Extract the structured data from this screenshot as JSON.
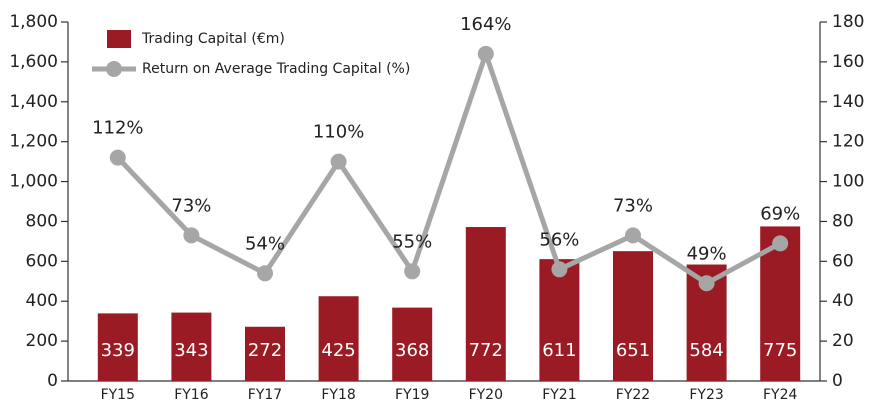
{
  "chart_data": {
    "type": "bar_line",
    "categories": [
      "FY15",
      "FY16",
      "FY17",
      "FY18",
      "FY19",
      "FY20",
      "FY21",
      "FY22",
      "FY23",
      "FY24"
    ],
    "series": [
      {
        "name": "Trading Capital (€m)",
        "type": "bar",
        "color": "#9b1b24",
        "values": [
          339,
          343,
          272,
          425,
          368,
          772,
          611,
          651,
          584,
          775
        ]
      },
      {
        "name": "Return on Average Trading Capital (%)",
        "type": "line",
        "axis": "y2",
        "color": "#a6a6a6",
        "values": [
          112,
          73,
          54,
          110,
          55,
          164,
          56,
          73,
          49,
          69
        ],
        "value_labels": [
          "112%",
          "73%",
          "54%",
          "110%",
          "55%",
          "164%",
          "56%",
          "73%",
          "49%",
          "69%"
        ]
      }
    ],
    "ylim": [
      0,
      1800
    ],
    "yticks": [
      0,
      200,
      400,
      600,
      800,
      {
        "value": 1000,
        "label": "1,000"
      },
      {
        "value": 1200,
        "label": "1,200"
      },
      {
        "value": 1400,
        "label": "1,400"
      },
      {
        "value": 1600,
        "label": "1,600"
      },
      {
        "value": 1800,
        "label": "1,800"
      }
    ],
    "y2lim": [
      0,
      180
    ],
    "y2ticks": [
      0,
      20,
      40,
      60,
      80,
      100,
      120,
      140,
      160,
      180
    ]
  }
}
